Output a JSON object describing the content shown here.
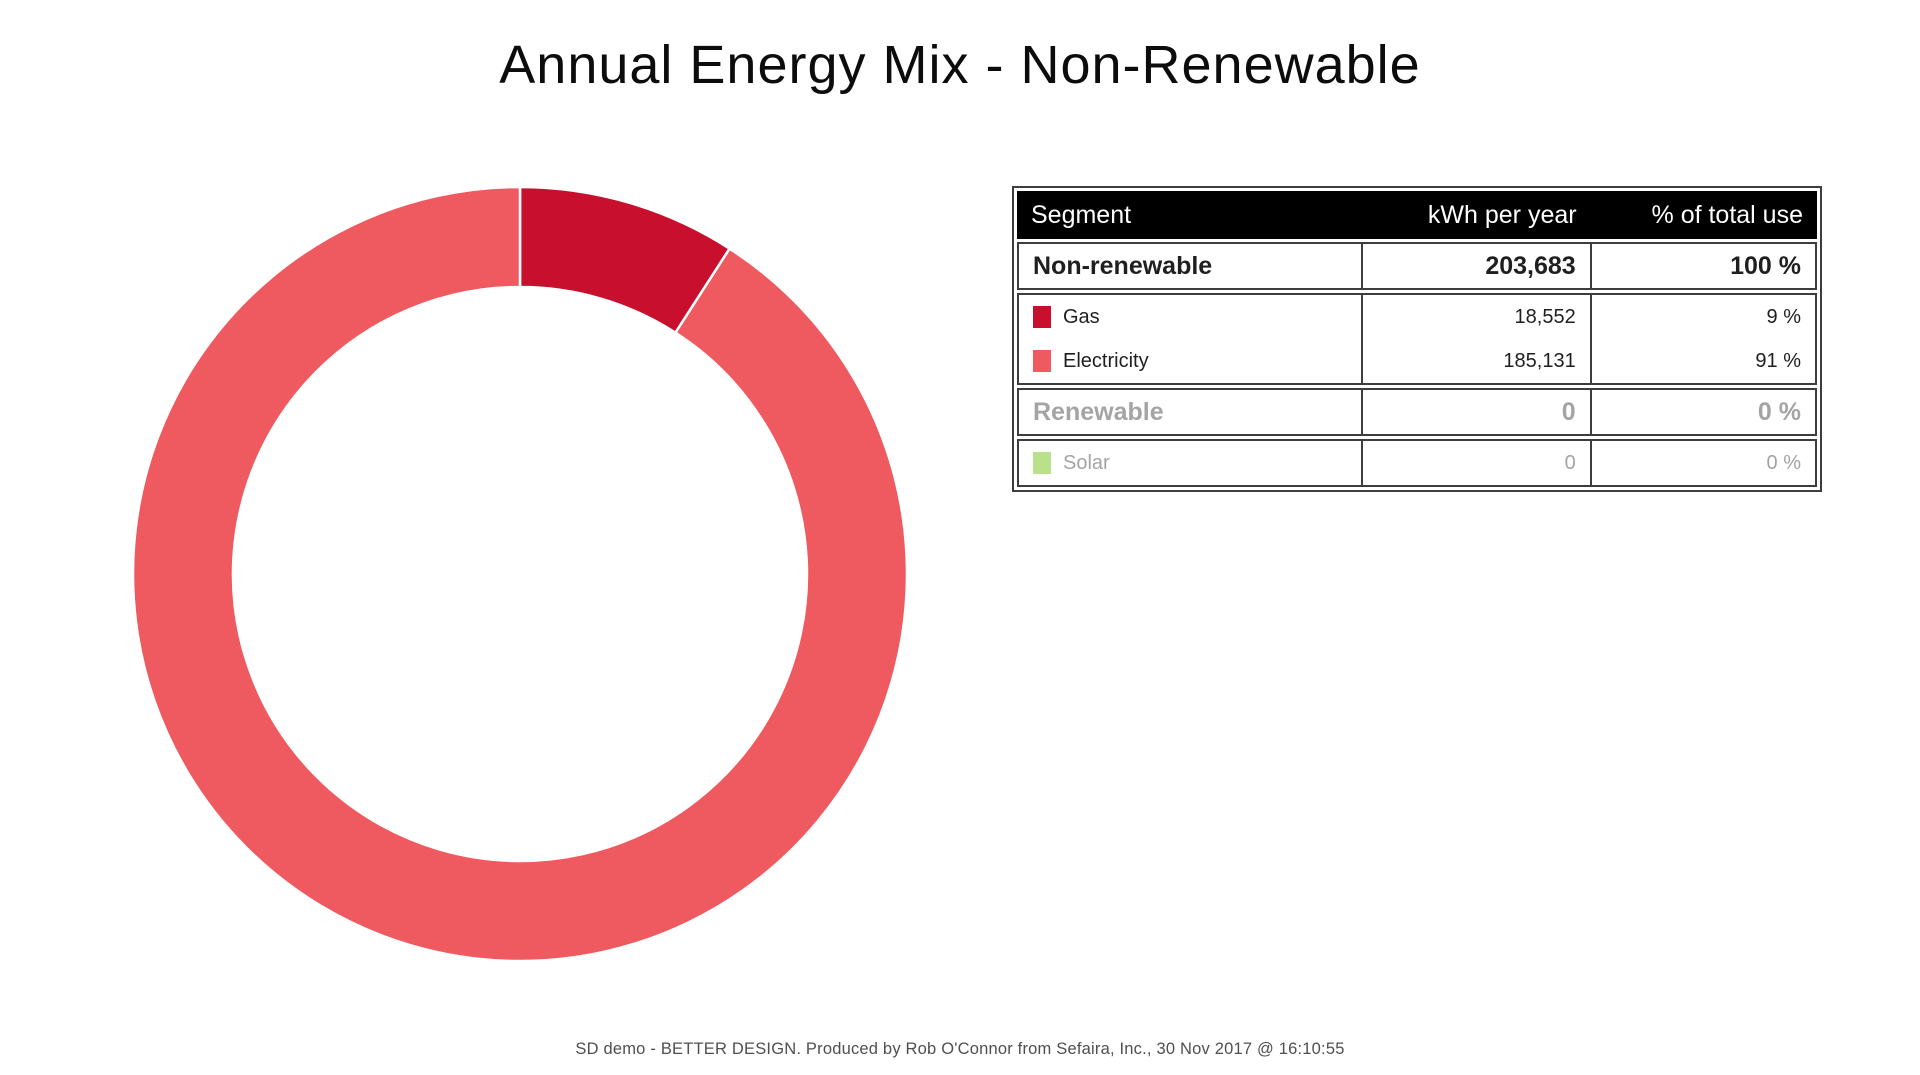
{
  "title": "Annual Energy Mix - Non-Renewable",
  "footer": "SD demo - BETTER DESIGN. Produced by Rob O'Connor from Sefaira, Inc., 30 Nov 2017 @ 16:10:55",
  "chart_data": {
    "type": "donut",
    "title": "Annual Energy Mix - Non-Renewable",
    "total_kwh_per_year": 203683,
    "start_angle_deg": 0,
    "inner_radius_ratio": 0.742,
    "separator_color": "#ffffff",
    "segments": [
      {
        "name": "Gas",
        "value": 18552,
        "pct": 9,
        "color": "#c8102e"
      },
      {
        "name": "Electricity",
        "value": 185131,
        "pct": 91,
        "color": "#ee5a5f"
      },
      {
        "name": "Solar",
        "value": 0,
        "pct": 0,
        "color": "#b9e18c"
      }
    ]
  },
  "table": {
    "columns": [
      "Segment",
      "kWh per year",
      "% of total use"
    ],
    "rows": {
      "non_renewable": {
        "label": "Non-renewable",
        "kwh": "203,683",
        "pct": "100 %"
      },
      "gas": {
        "label": "Gas",
        "kwh": "18,552",
        "pct": "9 %",
        "swatch": "#c8102e"
      },
      "electricity": {
        "label": "Electricity",
        "kwh": "185,131",
        "pct": "91 %",
        "swatch": "#ee5a5f"
      },
      "renewable": {
        "label": "Renewable",
        "kwh": "0",
        "pct": "0 %"
      },
      "solar": {
        "label": "Solar",
        "kwh": "0",
        "pct": "0 %",
        "swatch": "#b9e18c"
      }
    }
  }
}
